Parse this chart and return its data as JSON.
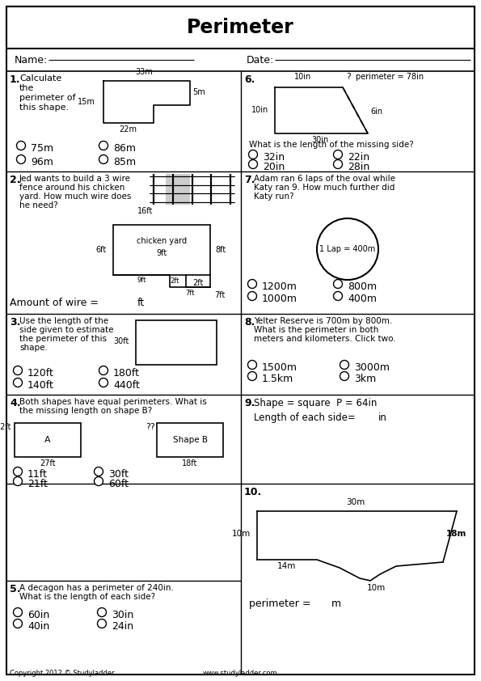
{
  "title": "Perimeter",
  "bg_color": "#ffffff",
  "footer_left": "Copyright 2012 © Studyladder",
  "footer_right": "www.studyladder.com",
  "q1_text": [
    "Calculate",
    "the",
    "perimeter of",
    "this shape."
  ],
  "q1_options": [
    "75m",
    "86m",
    "96m",
    "85m"
  ],
  "q6_options": [
    "32in",
    "22in",
    "20in",
    "28in"
  ],
  "q2_text": [
    "Jed wants to build a 3 wire",
    "fence around his chicken",
    "yard. How much wire does",
    "he need?"
  ],
  "q7_text": [
    "Adam ran 6 laps of the oval while",
    "Katy ran 9. How much further did",
    "Katy run?"
  ],
  "q7_options": [
    "1200m",
    "800m",
    "1000m",
    "400m"
  ],
  "q3_text": [
    "Use the length of the",
    "side given to estimate",
    "the perimeter of this",
    "shape."
  ],
  "q3_options": [
    "120ft",
    "180ft",
    "140ft",
    "440ft"
  ],
  "q8_text": [
    "Yelter Reserve is 700m by 800m.",
    "What is the perimeter in both",
    "meters and kilometers. Click two."
  ],
  "q8_options": [
    "1500m",
    "3000m",
    "1.5km",
    "3km"
  ],
  "q4_text": [
    "Both shapes have equal perimeters. What is",
    "the missing length on shape B?"
  ],
  "q4_options": [
    "11ft",
    "30ft",
    "21ft",
    "60ft"
  ],
  "q9_text": [
    "Shape = square  P = 64in",
    "Length of each side=      in"
  ],
  "q5_text": [
    "A decagon has a perimeter of 240in.",
    "What is the length of each side?"
  ],
  "q5_options": [
    "60in",
    "30in",
    "40in",
    "24in"
  ],
  "q10_label": "perimeter =      m"
}
